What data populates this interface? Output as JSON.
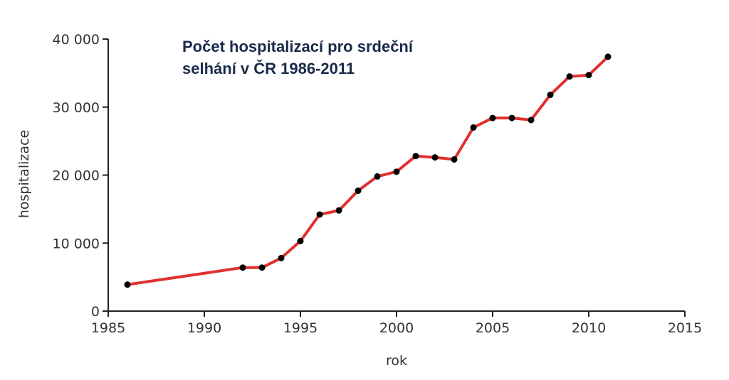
{
  "chart_data": {
    "type": "line",
    "title_lines": [
      "Počet hospitalizací pro srdeční",
      "selhání v ČR 1986-2011"
    ],
    "xlabel": "rok",
    "ylabel": "hospitalizace",
    "xlim": [
      1985,
      2015
    ],
    "ylim": [
      0,
      40000
    ],
    "x_ticks": [
      1985,
      1990,
      1995,
      2000,
      2005,
      2010,
      2015
    ],
    "x_tick_labels": [
      "1985",
      "1990",
      "1995",
      "2000",
      "2005",
      "2010",
      "2015"
    ],
    "y_ticks": [
      0,
      10000,
      20000,
      30000,
      40000
    ],
    "y_tick_labels": [
      "0",
      "10 000",
      "20 000",
      "30 000",
      "40 000"
    ],
    "grid": false,
    "series": [
      {
        "color": "#e03030",
        "marker_color": "#000000",
        "x": [
          1986,
          1992,
          1993,
          1994,
          1995,
          1996,
          1997,
          1998,
          1999,
          2000,
          2001,
          2002,
          2003,
          2004,
          2005,
          2006,
          2007,
          2008,
          2009,
          2010,
          2011
        ],
        "y": [
          3900,
          6400,
          6400,
          7800,
          10300,
          14200,
          14800,
          17700,
          19800,
          20500,
          22800,
          22600,
          22300,
          27000,
          28400,
          28400,
          28100,
          31800,
          34500,
          34700,
          37400
        ]
      }
    ]
  }
}
